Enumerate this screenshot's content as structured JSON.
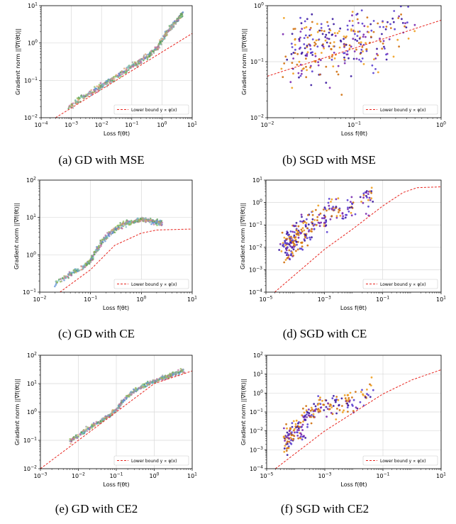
{
  "figure": {
    "legend_label": "Lower bound y ∝ φ(x)",
    "xlabel": "Loss f(θt)",
    "ylabel": "Gradient norm ||∇f(θt)||",
    "captions": [
      "(a) GD with MSE",
      "(b) SGD with MSE",
      "(c) GD with CE",
      "(d) SGD with CE",
      "(e) GD with CE2",
      "(f) SGD with CE2"
    ]
  },
  "colors": {
    "bound": "#e8251f",
    "gd_points": [
      "#9e9e9e",
      "#5b8fd6",
      "#8fbf5a",
      "#d9a070",
      "#7ac2c0",
      "#c06fa0",
      "#55a05a"
    ],
    "sgd_points": [
      "#3b1aa0",
      "#7a2ab0",
      "#f0a020",
      "#5a3fd0",
      "#d07010"
    ]
  },
  "chart_data": [
    {
      "id": "a",
      "type": "scatter",
      "caption": "(a) GD with MSE",
      "xscale": "log",
      "yscale": "log",
      "xlim": [
        0.0001,
        10
      ],
      "ylim": [
        0.01,
        10
      ],
      "xticks": [
        "10−4",
        "10−3",
        "10−2",
        "10−1",
        "100",
        "101"
      ],
      "yticks": [
        "10−2",
        "10−1",
        "100",
        "101"
      ],
      "legend": "lower-right",
      "grid": true,
      "series": [
        {
          "name": "Lower bound y ∝ φ(x)",
          "style": "dashed",
          "x": [
            0.0003,
            10
          ],
          "y": [
            0.01,
            1.8
          ]
        },
        {
          "style": "points",
          "x": [
            0.0008,
            0.002,
            0.005,
            0.01,
            0.02,
            0.05,
            0.1,
            0.2,
            0.4,
            0.7,
            1.0,
            1.5,
            2.5,
            4.0,
            5.0
          ],
          "y": [
            0.018,
            0.033,
            0.05,
            0.07,
            0.1,
            0.16,
            0.23,
            0.33,
            0.5,
            0.75,
            1.2,
            2.0,
            3.3,
            5.0,
            6.0
          ]
        }
      ]
    },
    {
      "id": "b",
      "type": "scatter",
      "caption": "(b) SGD with MSE",
      "xscale": "log",
      "yscale": "log",
      "xlim": [
        0.01,
        1
      ],
      "ylim": [
        0.01,
        1
      ],
      "xticks": [
        "10−2",
        "10−1",
        "100"
      ],
      "yticks": [
        "10−2",
        "10−1",
        "100"
      ],
      "legend": "lower-right",
      "grid": true,
      "series": [
        {
          "name": "Lower bound y ∝ φ(x)",
          "style": "dashed",
          "x": [
            0.01,
            1
          ],
          "y": [
            0.055,
            0.55
          ]
        },
        {
          "style": "points",
          "x": [
            0.02,
            0.022,
            0.025,
            0.03,
            0.035,
            0.04,
            0.05,
            0.06,
            0.08,
            0.1,
            0.12,
            0.15,
            0.2,
            0.3,
            0.45
          ],
          "y": [
            0.12,
            0.16,
            0.13,
            0.18,
            0.15,
            0.2,
            0.17,
            0.22,
            0.2,
            0.25,
            0.23,
            0.27,
            0.3,
            0.35,
            0.5
          ]
        }
      ]
    },
    {
      "id": "c",
      "type": "scatter",
      "caption": "(c) GD with CE",
      "xscale": "log",
      "yscale": "log",
      "xlim": [
        0.01,
        10
      ],
      "ylim": [
        0.1,
        100
      ],
      "xticks": [
        "10−2",
        "10−1",
        "100",
        "101"
      ],
      "yticks": [
        "10−1",
        "100",
        "101",
        "102"
      ],
      "legend": "lower-right",
      "grid": true,
      "series": [
        {
          "name": "Lower bound y ∝ φ(x)",
          "style": "dashed",
          "x": [
            0.025,
            0.1,
            0.3,
            1.0,
            2.0,
            10
          ],
          "y": [
            0.1,
            0.4,
            1.8,
            3.8,
            4.6,
            4.9
          ]
        },
        {
          "style": "points",
          "x": [
            0.02,
            0.04,
            0.07,
            0.1,
            0.13,
            0.18,
            0.25,
            0.35,
            0.5,
            0.7,
            1.0,
            1.4,
            2.0,
            2.5
          ],
          "y": [
            0.17,
            0.3,
            0.45,
            0.7,
            1.3,
            2.5,
            4.0,
            5.5,
            7.0,
            8.0,
            8.5,
            8.5,
            7.5,
            6.5
          ]
        }
      ]
    },
    {
      "id": "d",
      "type": "scatter",
      "caption": "(d) SGD with CE",
      "xscale": "log",
      "yscale": "log",
      "xlim": [
        1e-05,
        10
      ],
      "ylim": [
        0.0001,
        10
      ],
      "xticks": [
        "10−5",
        "10−3",
        "10−1",
        "101"
      ],
      "yticks": [
        "10−4",
        "10−3",
        "10−2",
        "10−1",
        "100",
        "101"
      ],
      "legend": "lower-right",
      "grid": true,
      "series": [
        {
          "name": "Lower bound y ∝ φ(x)",
          "style": "dashed",
          "x": [
            2e-05,
            0.001,
            0.01,
            0.1,
            0.5,
            1.5,
            10
          ],
          "y": [
            0.0001,
            0.008,
            0.07,
            0.7,
            2.8,
            4.6,
            5.0
          ]
        },
        {
          "style": "points",
          "x": [
            4e-05,
            5e-05,
            6e-05,
            8e-05,
            0.0001,
            0.00015,
            0.0002,
            0.0003,
            0.0005,
            0.001,
            0.002,
            0.005,
            0.02,
            0.05
          ],
          "y": [
            0.01,
            0.03,
            0.005,
            0.02,
            0.05,
            0.015,
            0.1,
            0.04,
            0.2,
            0.15,
            0.5,
            0.3,
            1.5,
            2.0
          ]
        }
      ]
    },
    {
      "id": "e",
      "type": "scatter",
      "caption": "(e) GD with CE2",
      "xscale": "log",
      "yscale": "log",
      "xlim": [
        0.001,
        10
      ],
      "ylim": [
        0.01,
        100
      ],
      "xticks": [
        "10−3",
        "10−2",
        "10−1",
        "100",
        "101"
      ],
      "yticks": [
        "10−2",
        "10−1",
        "100",
        "101",
        "102"
      ],
      "legend": "lower-right",
      "grid": true,
      "series": [
        {
          "name": "Lower bound y ∝ φ(x)",
          "style": "dashed",
          "x": [
            0.001,
            0.1,
            1.0,
            10
          ],
          "y": [
            0.01,
            1.0,
            10,
            28
          ]
        },
        {
          "style": "points",
          "x": [
            0.006,
            0.01,
            0.02,
            0.04,
            0.07,
            0.1,
            0.15,
            0.25,
            0.4,
            0.7,
            1.2,
            2.0,
            3.5,
            6.0
          ],
          "y": [
            0.09,
            0.15,
            0.28,
            0.5,
            0.8,
            1.2,
            2.5,
            4.5,
            7.0,
            10,
            13,
            17,
            22,
            30
          ]
        }
      ]
    },
    {
      "id": "f",
      "type": "scatter",
      "caption": "(f) SGD with CE2",
      "xscale": "log",
      "yscale": "log",
      "xlim": [
        1e-05,
        10
      ],
      "ylim": [
        0.0001,
        100
      ],
      "xticks": [
        "10−5",
        "10−3",
        "10−1",
        "101"
      ],
      "yticks": [
        "10−4",
        "10−3",
        "10−2",
        "10−1",
        "100",
        "101",
        "102"
      ],
      "legend": "lower-right",
      "grid": true,
      "series": [
        {
          "name": "Lower bound y ∝ φ(x)",
          "style": "dashed",
          "x": [
            2e-05,
            0.001,
            0.1,
            1.0,
            10
          ],
          "y": [
            0.0001,
            0.01,
            0.9,
            5.0,
            17
          ]
        },
        {
          "style": "points",
          "x": [
            4e-05,
            5e-05,
            7e-05,
            0.0001,
            0.00015,
            0.0002,
            0.0004,
            0.0008,
            0.002,
            0.005,
            0.01,
            0.05
          ],
          "y": [
            0.001,
            0.01,
            0.003,
            0.02,
            0.008,
            0.05,
            0.1,
            0.3,
            0.2,
            0.5,
            0.3,
            2.0
          ]
        }
      ]
    }
  ]
}
